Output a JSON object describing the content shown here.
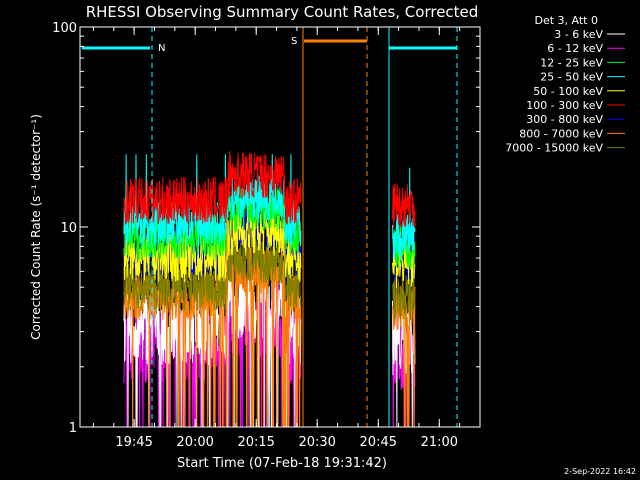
{
  "chart_data": {
    "type": "line",
    "title": "RHESSI Observing Summary Count Rates, Corrected",
    "xlabel": "Start Time (07-Feb-18 19:31:42)",
    "ylabel": "Corrected Count Rate (s⁻¹ detector⁻¹)",
    "yscale": "log",
    "ylim": [
      1,
      100
    ],
    "xlim": [
      "19:31:42",
      "21:10:00"
    ],
    "x_ticks": [
      "19:45",
      "20:00",
      "20:15",
      "20:30",
      "20:45",
      "21:00"
    ],
    "y_ticks": [
      "1",
      "10",
      "100"
    ],
    "legend_title": "Det 3, Att 0",
    "legend_placement": "right",
    "series": [
      {
        "name": "3 - 6 keV",
        "color": "#ffffff",
        "level_first": 3.2,
        "level_second": 2.8
      },
      {
        "name": "6 - 12 keV",
        "color": "#ff00ff",
        "level_first": 2.6,
        "level_second": 2.4
      },
      {
        "name": "12 - 25 keV",
        "color": "#00ff00",
        "level_first": 9.0,
        "level_second": 8.0
      },
      {
        "name": "25 - 50 keV",
        "color": "#00ffff",
        "level_first": 10.5,
        "level_second": 9.0
      },
      {
        "name": "50 - 100 keV",
        "color": "#ffff00",
        "level_first": 7.0,
        "level_second": 6.5
      },
      {
        "name": "100 - 300 keV",
        "color": "#ff0000",
        "level_first": 13.5,
        "level_second": 13.0
      },
      {
        "name": "300 - 800 keV",
        "color": "#0000ff",
        "level_first": 7.5,
        "level_second": 7.0
      },
      {
        "name": "800 - 7000 keV",
        "color": "#ff8000",
        "level_first": 4.5,
        "level_second": 4.0
      },
      {
        "name": "7000 - 15000 keV",
        "color": "#808000",
        "level_first": 5.0,
        "level_second": 4.5
      }
    ],
    "flags": [
      {
        "label": "N",
        "color": "#00ffff"
      },
      {
        "label": "S",
        "color": "#ff8000"
      }
    ],
    "footer": "2-Sep-2022 16:42"
  }
}
